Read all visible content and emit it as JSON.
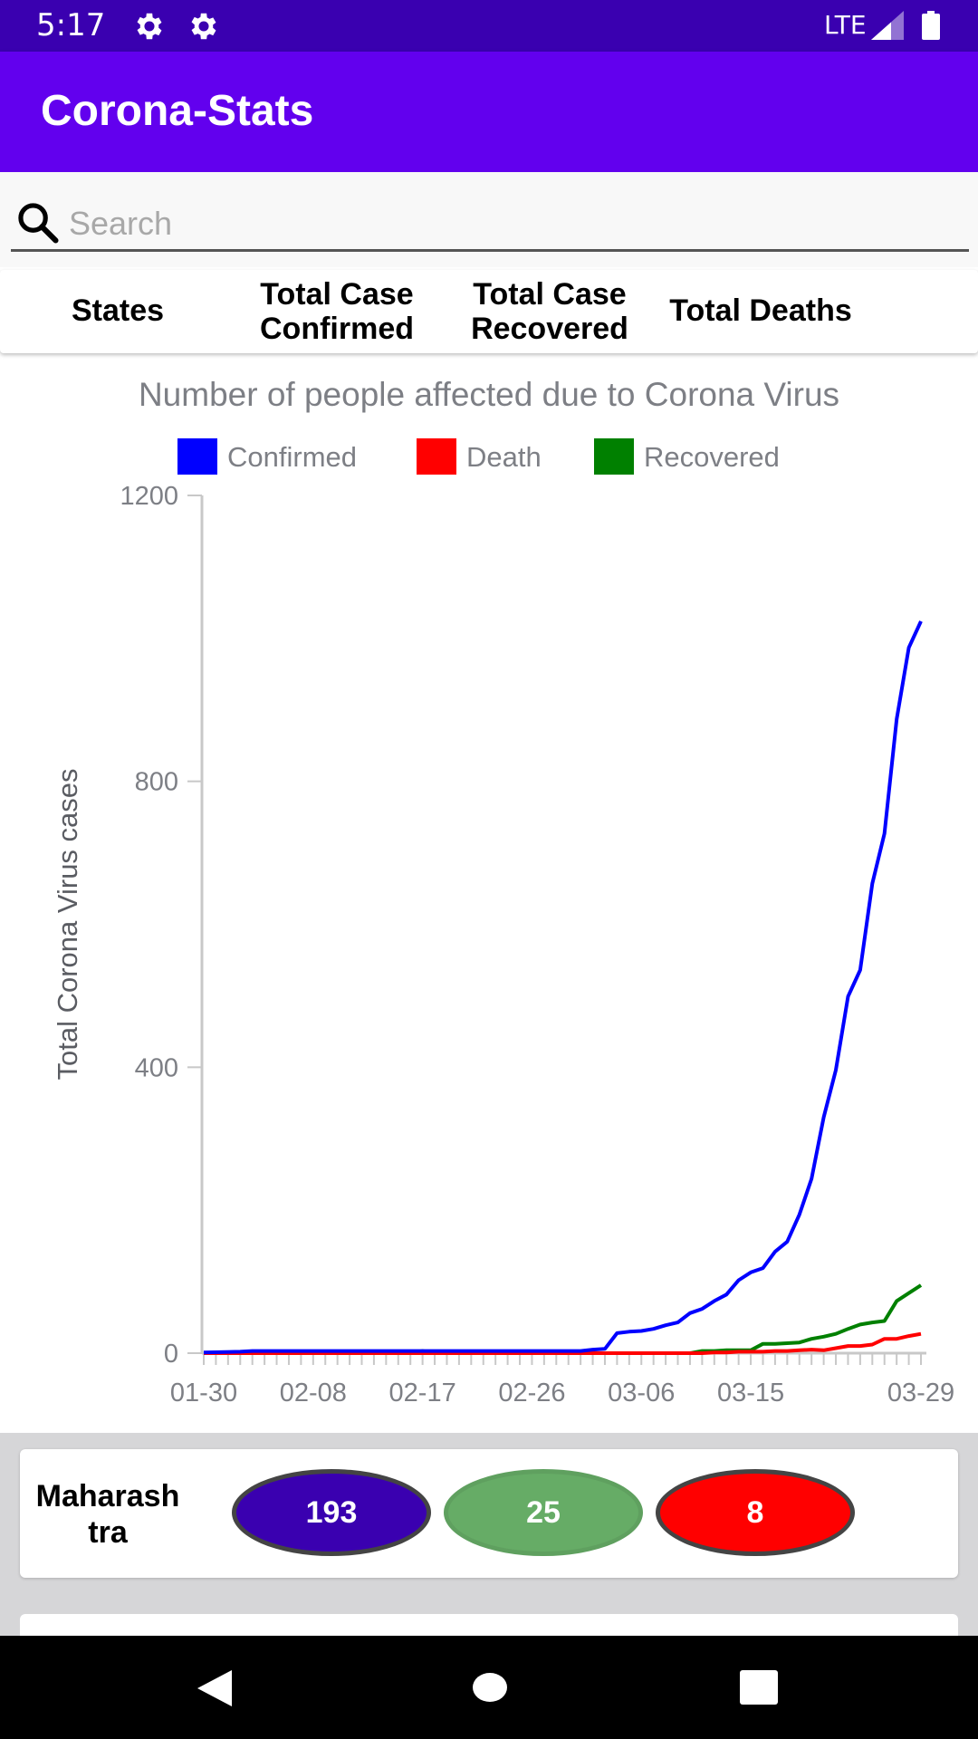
{
  "status_bar": {
    "time": "5:17",
    "network": "LTE",
    "icons": [
      "gear-icon",
      "gear-icon",
      "signal-icon",
      "battery-icon"
    ]
  },
  "app_bar": {
    "title": "Corona-Stats"
  },
  "search": {
    "placeholder": "Search",
    "value": ""
  },
  "table_header": {
    "states": "States",
    "confirmed": "Total Case Confirmed",
    "recovered": "Total Case Recovered",
    "deaths": "Total Deaths"
  },
  "colors": {
    "confirmed": "#0000ff",
    "death": "#ff0000",
    "recovered": "#008000",
    "app_bar": "#6200ee",
    "status_bar": "#3a00b0"
  },
  "chart_data": {
    "type": "line",
    "title": "Number of people affected due to Corona Virus",
    "xlabel": "",
    "ylabel": "Total Corona Virus cases",
    "ylim": [
      0,
      1200
    ],
    "yticks": [
      0,
      400,
      800,
      1200
    ],
    "xtick_labels": [
      "01-30",
      "02-08",
      "02-17",
      "02-26",
      "03-06",
      "03-15",
      "03-29"
    ],
    "x_start": "2020-01-30",
    "x_end": "2020-03-29",
    "legend_position": "top",
    "series": [
      {
        "name": "Confirmed",
        "color": "#0000ff",
        "points": [
          [
            "2020-01-30",
            1
          ],
          [
            "2020-02-02",
            2
          ],
          [
            "2020-02-03",
            3
          ],
          [
            "2020-03-01",
            3
          ],
          [
            "2020-03-02",
            5
          ],
          [
            "2020-03-03",
            6
          ],
          [
            "2020-03-04",
            28
          ],
          [
            "2020-03-05",
            30
          ],
          [
            "2020-03-06",
            31
          ],
          [
            "2020-03-07",
            34
          ],
          [
            "2020-03-08",
            39
          ],
          [
            "2020-03-09",
            43
          ],
          [
            "2020-03-10",
            56
          ],
          [
            "2020-03-11",
            62
          ],
          [
            "2020-03-12",
            73
          ],
          [
            "2020-03-13",
            82
          ],
          [
            "2020-03-14",
            102
          ],
          [
            "2020-03-15",
            113
          ],
          [
            "2020-03-16",
            119
          ],
          [
            "2020-03-17",
            142
          ],
          [
            "2020-03-18",
            156
          ],
          [
            "2020-03-19",
            194
          ],
          [
            "2020-03-20",
            244
          ],
          [
            "2020-03-21",
            330
          ],
          [
            "2020-03-22",
            396
          ],
          [
            "2020-03-23",
            499
          ],
          [
            "2020-03-24",
            536
          ],
          [
            "2020-03-25",
            657
          ],
          [
            "2020-03-26",
            727
          ],
          [
            "2020-03-27",
            887
          ],
          [
            "2020-03-28",
            987
          ],
          [
            "2020-03-29",
            1024
          ]
        ]
      },
      {
        "name": "Death",
        "color": "#ff0000",
        "points": [
          [
            "2020-01-30",
            0
          ],
          [
            "2020-03-11",
            0
          ],
          [
            "2020-03-12",
            1
          ],
          [
            "2020-03-13",
            1
          ],
          [
            "2020-03-14",
            2
          ],
          [
            "2020-03-15",
            2
          ],
          [
            "2020-03-16",
            2
          ],
          [
            "2020-03-17",
            3
          ],
          [
            "2020-03-18",
            3
          ],
          [
            "2020-03-19",
            4
          ],
          [
            "2020-03-20",
            5
          ],
          [
            "2020-03-21",
            4
          ],
          [
            "2020-03-22",
            7
          ],
          [
            "2020-03-23",
            10
          ],
          [
            "2020-03-24",
            10
          ],
          [
            "2020-03-25",
            12
          ],
          [
            "2020-03-26",
            20
          ],
          [
            "2020-03-27",
            20
          ],
          [
            "2020-03-28",
            24
          ],
          [
            "2020-03-29",
            27
          ]
        ]
      },
      {
        "name": "Recovered",
        "color": "#008000",
        "points": [
          [
            "2020-01-30",
            0
          ],
          [
            "2020-02-16",
            0
          ],
          [
            "2020-02-17",
            3
          ],
          [
            "2020-02-18",
            0
          ],
          [
            "2020-03-10",
            0
          ],
          [
            "2020-03-11",
            3
          ],
          [
            "2020-03-12",
            3
          ],
          [
            "2020-03-13",
            4
          ],
          [
            "2020-03-14",
            4
          ],
          [
            "2020-03-15",
            4
          ],
          [
            "2020-03-16",
            13
          ],
          [
            "2020-03-17",
            13
          ],
          [
            "2020-03-18",
            14
          ],
          [
            "2020-03-19",
            15
          ],
          [
            "2020-03-20",
            20
          ],
          [
            "2020-03-21",
            23
          ],
          [
            "2020-03-22",
            27
          ],
          [
            "2020-03-23",
            34
          ],
          [
            "2020-03-24",
            40
          ],
          [
            "2020-03-25",
            43
          ],
          [
            "2020-03-26",
            45
          ],
          [
            "2020-03-27",
            73
          ],
          [
            "2020-03-28",
            84
          ],
          [
            "2020-03-29",
            95
          ]
        ]
      }
    ]
  },
  "states": [
    {
      "name": "Maharashtra",
      "confirmed": "193",
      "recovered": "25",
      "deaths": "8"
    }
  ]
}
